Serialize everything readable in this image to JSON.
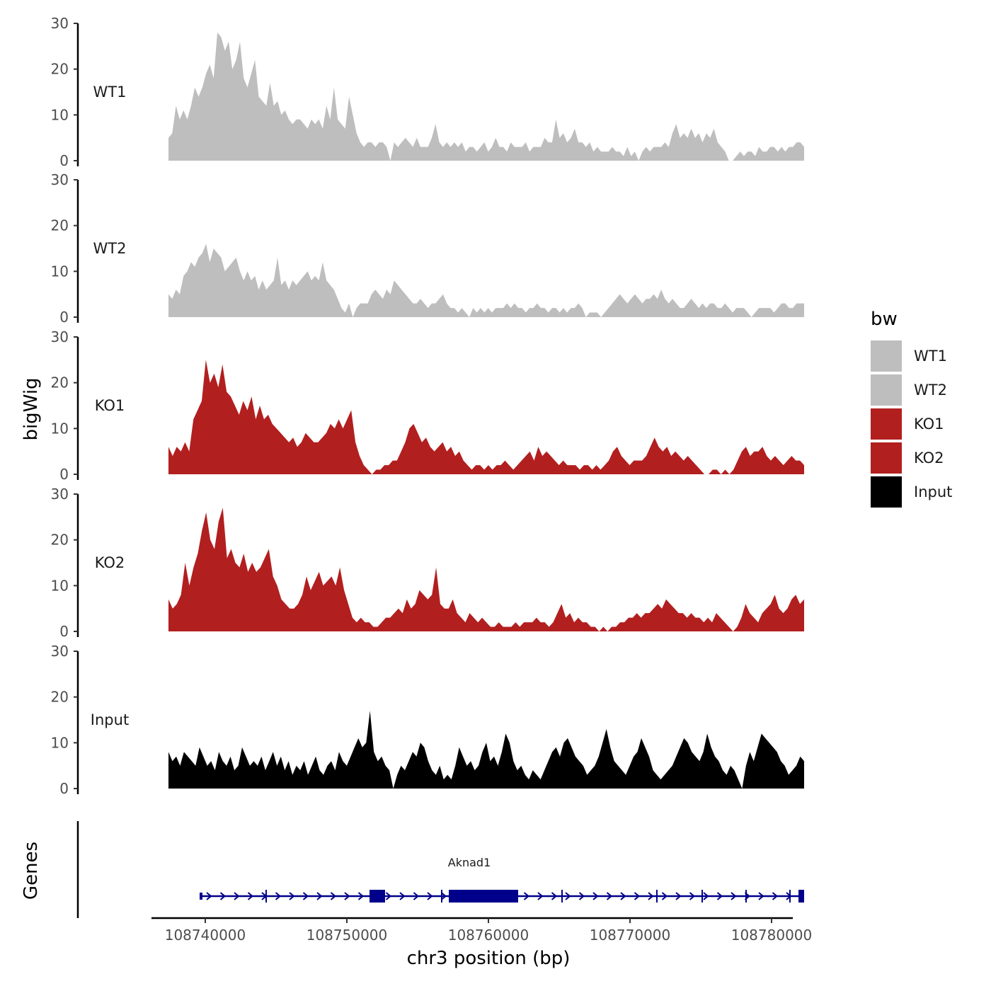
{
  "chart_data": {
    "type": "area",
    "ylabel": "bigWig",
    "xlabel": "chr3 position (bp)",
    "ylim": [
      0,
      30
    ],
    "yticks": [
      0,
      10,
      20,
      30
    ],
    "xlim": [
      108736200,
      108781500
    ],
    "xticks": [
      108740000,
      108750000,
      108760000,
      108770000,
      108780000
    ],
    "xtick_labels": [
      "108740000",
      "108750000",
      "108760000",
      "108770000",
      "108780000"
    ],
    "legend": {
      "title": "bw",
      "position": "right",
      "entries": [
        {
          "label": "WT1",
          "color": "#bebebe"
        },
        {
          "label": "WT2",
          "color": "#bebebe"
        },
        {
          "label": "KO1",
          "color": "#b21f1f"
        },
        {
          "label": "KO2",
          "color": "#b21f1f"
        },
        {
          "label": "Input",
          "color": "#000000"
        }
      ]
    },
    "x_start": 108737400,
    "x_end": 108782300,
    "series": [
      {
        "name": "WT1",
        "color": "#bebebe",
        "values": [
          5,
          6,
          12,
          9,
          11,
          9,
          12,
          16,
          14,
          16,
          19,
          21,
          18,
          28,
          27,
          24,
          26,
          20,
          22,
          26,
          18,
          16,
          19,
          22,
          14,
          13,
          12,
          17,
          12,
          13,
          10,
          11,
          9,
          8,
          9,
          9,
          8,
          7,
          9,
          8,
          9,
          7,
          12,
          9,
          16,
          9,
          8,
          7,
          14,
          10,
          6,
          4,
          3,
          4,
          4,
          3,
          4,
          4,
          3,
          0,
          4,
          3,
          4,
          5,
          4,
          3,
          5,
          3,
          3,
          3,
          5,
          8,
          4,
          3,
          4,
          3,
          4,
          3,
          4,
          2,
          3,
          3,
          2,
          3,
          4,
          2,
          3,
          5,
          3,
          3,
          2,
          4,
          3,
          3,
          3,
          4,
          2,
          3,
          3,
          3,
          5,
          4,
          4,
          9,
          5,
          6,
          4,
          5,
          7,
          4,
          4,
          3,
          4,
          2,
          3,
          2,
          2,
          2,
          3,
          2,
          2,
          1,
          3,
          1,
          2,
          0,
          2,
          3,
          2,
          3,
          3,
          3,
          4,
          3,
          6,
          8,
          5,
          6,
          5,
          7,
          5,
          6,
          4,
          6,
          5,
          7,
          4,
          3,
          2,
          0,
          0,
          1,
          2,
          1,
          2,
          2,
          1,
          3,
          2,
          2,
          3,
          3,
          2,
          3,
          2,
          3,
          3,
          4,
          4,
          3
        ]
      },
      {
        "name": "WT2",
        "color": "#bebebe",
        "values": [
          5,
          4,
          6,
          5,
          9,
          10,
          12,
          11,
          13,
          14,
          16,
          12,
          15,
          14,
          13,
          10,
          11,
          12,
          13,
          10,
          8,
          10,
          8,
          9,
          6,
          8,
          6,
          7,
          8,
          13,
          7,
          8,
          6,
          8,
          7,
          8,
          9,
          10,
          8,
          9,
          8,
          12,
          8,
          7,
          6,
          4,
          2,
          1,
          3,
          0,
          2,
          3,
          3,
          3,
          5,
          6,
          5,
          4,
          6,
          5,
          8,
          7,
          6,
          5,
          4,
          3,
          3,
          4,
          3,
          2,
          3,
          3,
          4,
          5,
          3,
          2,
          2,
          1,
          2,
          1,
          0,
          2,
          1,
          2,
          1,
          2,
          1,
          2,
          2,
          2,
          3,
          2,
          3,
          2,
          2,
          1,
          2,
          2,
          3,
          2,
          2,
          1,
          2,
          2,
          1,
          2,
          1,
          2,
          2,
          3,
          2,
          0,
          1,
          1,
          1,
          0,
          1,
          2,
          3,
          4,
          5,
          4,
          3,
          4,
          5,
          4,
          3,
          4,
          4,
          5,
          4,
          6,
          4,
          3,
          4,
          3,
          2,
          2,
          3,
          4,
          3,
          2,
          3,
          2,
          3,
          3,
          2,
          2,
          3,
          2,
          1,
          2,
          2,
          2,
          1,
          0,
          1,
          2,
          2,
          2,
          2,
          1,
          2,
          3,
          3,
          2,
          2,
          3,
          3,
          3
        ]
      },
      {
        "name": "KO1",
        "color": "#b21f1f",
        "values": [
          6,
          4,
          6,
          5,
          7,
          5,
          12,
          14,
          16,
          25,
          20,
          22,
          19,
          24,
          18,
          17,
          15,
          13,
          16,
          14,
          17,
          12,
          15,
          12,
          13,
          11,
          10,
          9,
          8,
          7,
          8,
          6,
          7,
          9,
          8,
          7,
          7,
          8,
          9,
          11,
          10,
          12,
          10,
          12,
          14,
          7,
          4,
          2,
          1,
          0,
          1,
          1,
          2,
          2,
          3,
          3,
          5,
          7,
          10,
          11,
          9,
          7,
          8,
          6,
          5,
          6,
          7,
          5,
          6,
          4,
          5,
          3,
          2,
          1,
          2,
          2,
          1,
          2,
          1,
          2,
          2,
          3,
          2,
          1,
          2,
          3,
          4,
          5,
          3,
          6,
          4,
          5,
          4,
          3,
          2,
          3,
          2,
          2,
          2,
          1,
          2,
          2,
          1,
          2,
          1,
          2,
          3,
          5,
          6,
          4,
          3,
          2,
          3,
          3,
          3,
          4,
          6,
          8,
          6,
          5,
          6,
          4,
          5,
          4,
          3,
          4,
          3,
          2,
          1,
          0,
          0,
          1,
          1,
          0,
          1,
          0,
          1,
          3,
          5,
          6,
          4,
          5,
          5,
          6,
          4,
          3,
          4,
          3,
          2,
          3,
          4,
          3,
          3,
          2
        ]
      },
      {
        "name": "KO2",
        "color": "#b21f1f",
        "values": [
          7,
          5,
          6,
          8,
          15,
          10,
          14,
          17,
          22,
          26,
          20,
          18,
          24,
          27,
          16,
          18,
          15,
          14,
          17,
          13,
          15,
          13,
          14,
          16,
          18,
          12,
          10,
          7,
          6,
          5,
          5,
          6,
          8,
          12,
          9,
          11,
          13,
          10,
          11,
          12,
          10,
          14,
          9,
          6,
          3,
          2,
          3,
          2,
          2,
          1,
          1,
          2,
          3,
          3,
          4,
          5,
          4,
          7,
          5,
          6,
          9,
          8,
          7,
          8,
          14,
          6,
          5,
          5,
          7,
          4,
          3,
          2,
          4,
          3,
          2,
          3,
          2,
          1,
          1,
          2,
          1,
          1,
          1,
          2,
          1,
          2,
          2,
          2,
          3,
          2,
          2,
          1,
          2,
          4,
          6,
          3,
          4,
          2,
          3,
          2,
          2,
          1,
          1,
          0,
          1,
          0,
          1,
          1,
          2,
          2,
          3,
          3,
          4,
          3,
          4,
          4,
          5,
          6,
          5,
          7,
          6,
          5,
          4,
          4,
          3,
          4,
          3,
          3,
          2,
          3,
          2,
          4,
          3,
          2,
          1,
          0,
          1,
          3,
          6,
          4,
          3,
          2,
          4,
          5,
          6,
          8,
          5,
          4,
          5,
          7,
          8,
          6,
          7
        ]
      },
      {
        "name": "Input",
        "color": "#000000",
        "values": [
          8,
          6,
          7,
          5,
          8,
          7,
          6,
          5,
          9,
          7,
          5,
          6,
          4,
          8,
          6,
          5,
          7,
          4,
          5,
          9,
          7,
          5,
          6,
          5,
          7,
          4,
          6,
          8,
          5,
          7,
          4,
          6,
          3,
          5,
          4,
          6,
          3,
          5,
          7,
          4,
          3,
          5,
          6,
          4,
          8,
          6,
          5,
          7,
          9,
          11,
          9,
          10,
          17,
          8,
          6,
          7,
          5,
          4,
          0,
          3,
          5,
          4,
          6,
          8,
          7,
          10,
          9,
          6,
          4,
          3,
          5,
          2,
          3,
          2,
          5,
          9,
          7,
          5,
          6,
          4,
          5,
          8,
          10,
          6,
          7,
          5,
          8,
          12,
          10,
          6,
          4,
          5,
          3,
          2,
          4,
          3,
          2,
          4,
          6,
          8,
          9,
          7,
          10,
          11,
          9,
          7,
          6,
          5,
          3,
          4,
          5,
          7,
          10,
          13,
          9,
          6,
          5,
          4,
          3,
          5,
          7,
          8,
          11,
          9,
          7,
          4,
          3,
          2,
          3,
          4,
          5,
          7,
          9,
          11,
          10,
          8,
          7,
          6,
          8,
          12,
          9,
          7,
          6,
          4,
          3,
          5,
          4,
          2,
          0,
          5,
          8,
          6,
          9,
          12,
          11,
          10,
          9,
          8,
          6,
          5,
          3,
          4,
          5,
          7,
          6
        ]
      }
    ],
    "gene_track": {
      "label": "Genes",
      "gene_name": "Aknad1",
      "color": "#00008b",
      "x_start": 108739600,
      "x_end": 108782300,
      "exons": [
        {
          "start": 108739600,
          "end": 108739800,
          "thick": false
        },
        {
          "start": 108751600,
          "end": 108752700,
          "thick": true
        },
        {
          "start": 108757200,
          "end": 108762100,
          "thick": true
        },
        {
          "start": 108781900,
          "end": 108782300,
          "thick": true
        }
      ],
      "markers": [
        108744300,
        108756700,
        108765200,
        108771900,
        108775100,
        108778200,
        108781300
      ]
    }
  }
}
